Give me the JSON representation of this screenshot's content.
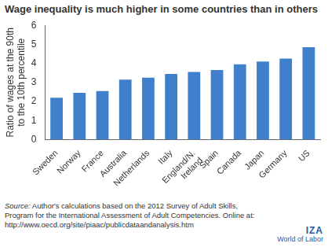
{
  "chart_data": {
    "type": "bar",
    "title": "Wage inequality is much higher in some countries than in others",
    "y_label": "Ratio of wages at the 90th to the 10th percentile",
    "categories": [
      "Sweden",
      "Norway",
      "France",
      "Australia",
      "Netherlands",
      "Italy",
      "England/N. Ireland",
      "Spain",
      "Canada",
      "Japan",
      "Germany",
      "US"
    ],
    "values": [
      2.2,
      2.45,
      2.55,
      3.15,
      3.25,
      3.45,
      3.55,
      3.65,
      3.95,
      4.1,
      4.25,
      4.85
    ],
    "color": "#3f7fcb",
    "ylim": [
      0,
      6
    ],
    "yticks": [
      0,
      1,
      2,
      3,
      4,
      5,
      6
    ],
    "grid": false,
    "source": "Source: Author's calculations based on the 2012 Survey of Adult Skills, Program for the International Assessment of Adult Competencies. Online at: http://www.oecd.org/site/piaac/publicdataandanalysis.htm",
    "annotations": [
      "IZA",
      "World of Labor"
    ]
  }
}
